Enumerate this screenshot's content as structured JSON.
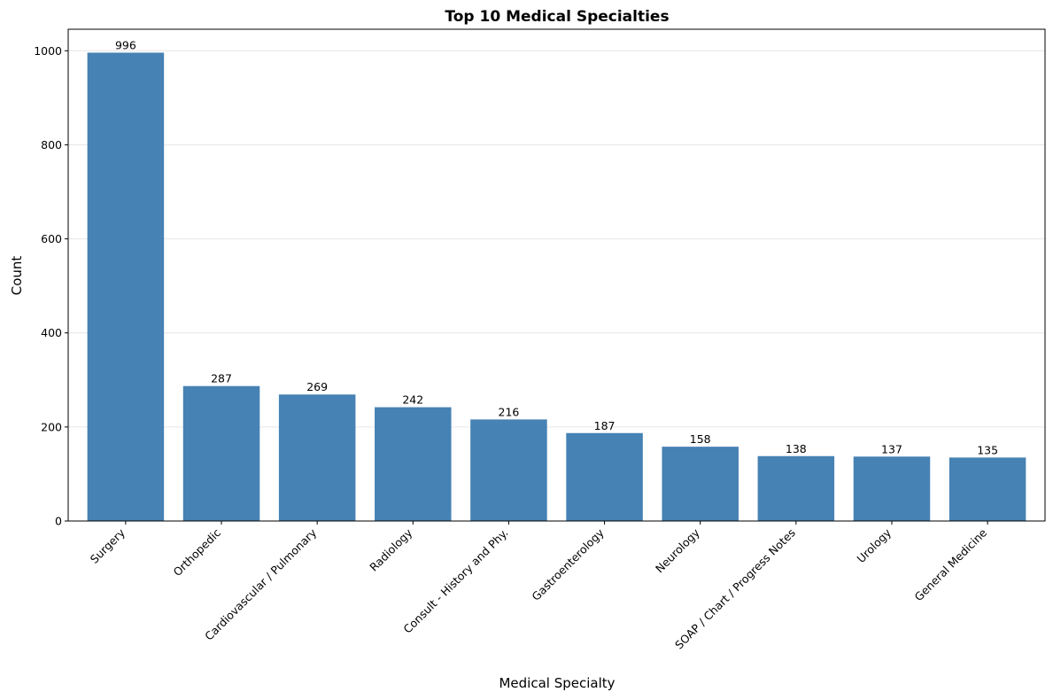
{
  "chart_data": {
    "type": "bar",
    "title": "Top 10 Medical Specialties",
    "xlabel": "Medical Specialty",
    "ylabel": "Count",
    "categories": [
      "Surgery",
      "Orthopedic",
      "Cardiovascular / Pulmonary",
      "Radiology",
      "Consult - History and Phy.",
      "Gastroenterology",
      "Neurology",
      "SOAP / Chart / Progress Notes",
      "Urology",
      "General Medicine"
    ],
    "values": [
      996,
      287,
      269,
      242,
      216,
      187,
      158,
      138,
      137,
      135
    ],
    "yticks": [
      0,
      200,
      400,
      600,
      800,
      1000
    ],
    "ylim": [
      0,
      1045.8
    ],
    "grid": "y",
    "bar_color": "#4682b4",
    "show_value_labels": true
  }
}
